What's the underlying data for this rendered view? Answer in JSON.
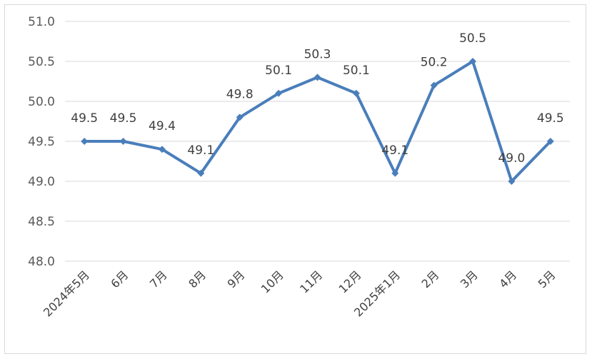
{
  "chart_data": {
    "type": "line",
    "title": "",
    "xlabel": "",
    "ylabel": "",
    "categories": [
      "2024年5月",
      "6月",
      "7月",
      "8月",
      "9月",
      "10月",
      "11月",
      "12月",
      "2025年1月",
      "2月",
      "3月",
      "4月",
      "5月"
    ],
    "series": [
      {
        "values": [
          49.5,
          49.5,
          49.4,
          49.1,
          49.8,
          50.1,
          50.3,
          50.1,
          49.1,
          50.2,
          50.5,
          49.0,
          49.5
        ],
        "labels": [
          "49.5",
          "49.5",
          "49.4",
          "49.1",
          "49.8",
          "50.1",
          "50.3",
          "50.1",
          "49.1",
          "50.2",
          "50.5",
          "49.0",
          "49.5"
        ],
        "color": "#4a7ebb"
      }
    ],
    "ylim": [
      48.0,
      51.0
    ],
    "yticks": [
      "48.0",
      "48.5",
      "49.0",
      "49.5",
      "50.0",
      "50.5",
      "51.0"
    ],
    "grid": true,
    "grid_color": "#d9d9d9",
    "legend": "none"
  }
}
